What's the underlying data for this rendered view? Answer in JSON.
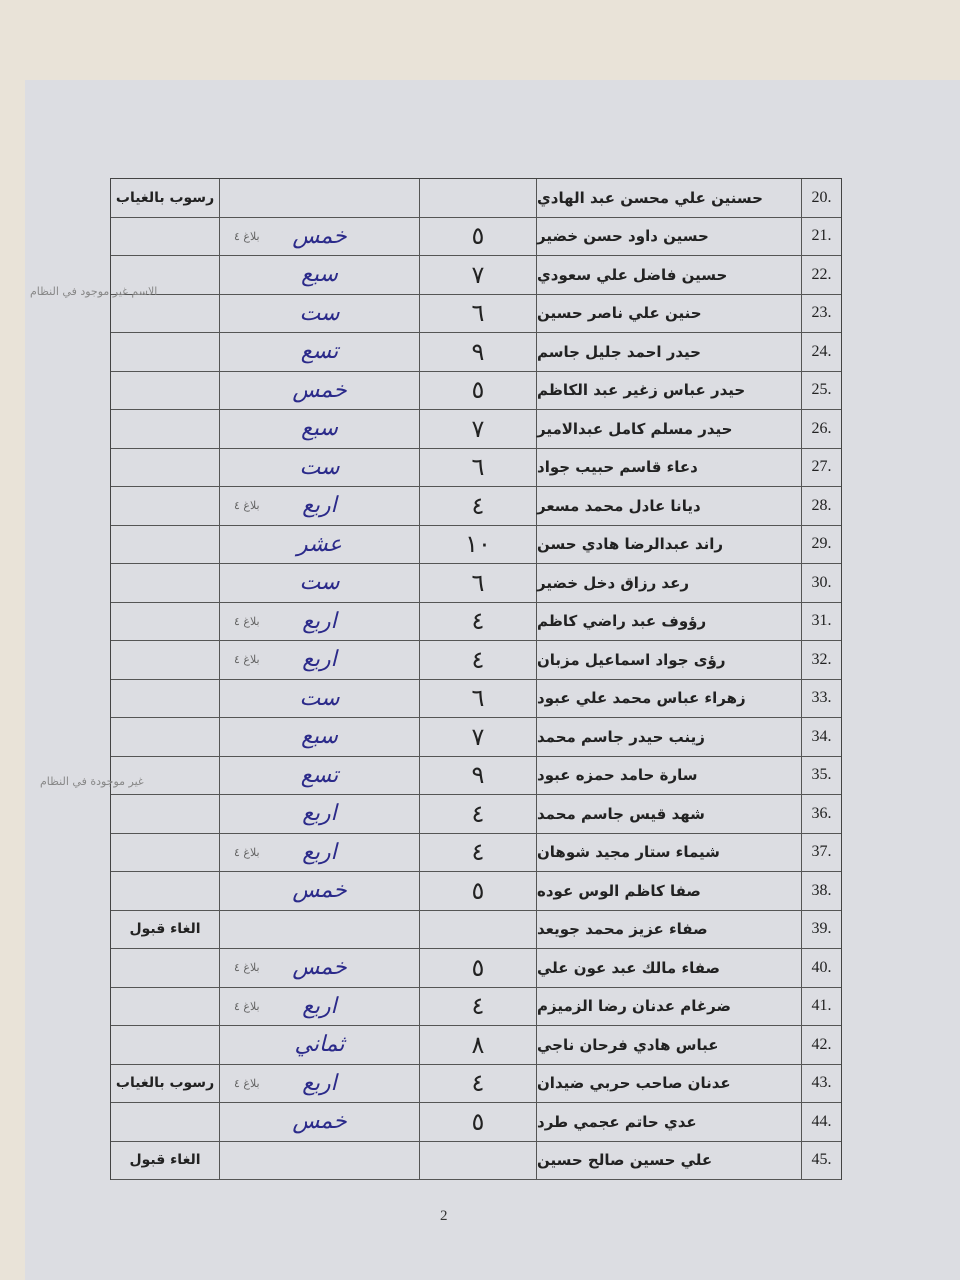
{
  "rows": [
    {
      "num": "20.",
      "name": "حسنين علي محسن عبد الهادي",
      "digit": "",
      "word": "",
      "tag": "",
      "note": "رسوب بالغياب"
    },
    {
      "num": "21.",
      "name": "حسين داود حسن خضير",
      "digit": "٥",
      "word": "خمس",
      "tag": "بلاغ ٤",
      "note": ""
    },
    {
      "num": "22.",
      "name": "حسين فاضل علي سعودي",
      "digit": "٧",
      "word": "سبع",
      "tag": "",
      "note": ""
    },
    {
      "num": "23.",
      "name": "حنين علي ناصر حسين",
      "digit": "٦",
      "word": "ست",
      "tag": "",
      "note": ""
    },
    {
      "num": "24.",
      "name": "حيدر احمد جليل جاسم",
      "digit": "٩",
      "word": "تسع",
      "tag": "",
      "note": ""
    },
    {
      "num": "25.",
      "name": "حيدر عباس زغير عبد الكاظم",
      "digit": "٥",
      "word": "خمس",
      "tag": "",
      "note": ""
    },
    {
      "num": "26.",
      "name": "حيدر مسلم كامل عبدالامير",
      "digit": "٧",
      "word": "سبع",
      "tag": "",
      "note": ""
    },
    {
      "num": "27.",
      "name": "دعاء قاسم حبيب جواد",
      "digit": "٦",
      "word": "ست",
      "tag": "",
      "note": ""
    },
    {
      "num": "28.",
      "name": "ديانا عادل محمد مسعر",
      "digit": "٤",
      "word": "اربع",
      "tag": "بلاغ ٤",
      "note": ""
    },
    {
      "num": "29.",
      "name": "راند عبدالرضا هادي حسن",
      "digit": "١٠",
      "word": "عشر",
      "tag": "",
      "note": ""
    },
    {
      "num": "30.",
      "name": "رعد رزاق دخل خضير",
      "digit": "٦",
      "word": "ست",
      "tag": "",
      "note": ""
    },
    {
      "num": "31.",
      "name": "رؤوف عبد راضي كاظم",
      "digit": "٤",
      "word": "اربع",
      "tag": "بلاغ ٤",
      "note": ""
    },
    {
      "num": "32.",
      "name": "رؤى جواد اسماعيل مزبان",
      "digit": "٤",
      "word": "اربع",
      "tag": "بلاغ ٤",
      "note": ""
    },
    {
      "num": "33.",
      "name": "زهراء عباس محمد علي عبود",
      "digit": "٦",
      "word": "ست",
      "tag": "",
      "note": ""
    },
    {
      "num": "34.",
      "name": "زينب حيدر جاسم محمد",
      "digit": "٧",
      "word": "سبع",
      "tag": "",
      "note": ""
    },
    {
      "num": "35.",
      "name": "سارة حامد حمزه عبود",
      "digit": "٩",
      "word": "تسع",
      "tag": "",
      "note": ""
    },
    {
      "num": "36.",
      "name": "شهد قيس جاسم محمد",
      "digit": "٤",
      "word": "اربع",
      "tag": "",
      "note": ""
    },
    {
      "num": "37.",
      "name": "شيماء ستار مجيد شوهان",
      "digit": "٤",
      "word": "اربع",
      "tag": "بلاغ ٤",
      "note": ""
    },
    {
      "num": "38.",
      "name": "صفا كاظم الوس عوده",
      "digit": "٥",
      "word": "خمس",
      "tag": "",
      "note": ""
    },
    {
      "num": "39.",
      "name": "صفاء عزيز محمد جويعد",
      "digit": "",
      "word": "",
      "tag": "",
      "note": "الغاء قبول"
    },
    {
      "num": "40.",
      "name": "صفاء مالك عبد عون علي",
      "digit": "٥",
      "word": "خمس",
      "tag": "بلاغ ٤",
      "note": ""
    },
    {
      "num": "41.",
      "name": "ضرغام عدنان رضا الزميزم",
      "digit": "٤",
      "word": "اربع",
      "tag": "بلاغ ٤",
      "note": ""
    },
    {
      "num": "42.",
      "name": "عباس هادي فرحان ناجي",
      "digit": "٨",
      "word": "ثماني",
      "tag": "",
      "note": ""
    },
    {
      "num": "43.",
      "name": "عدنان صاحب حربي ضيدان",
      "digit": "٤",
      "word": "اربع",
      "tag": "بلاغ ٤",
      "note": "رسوب بالغياب"
    },
    {
      "num": "44.",
      "name": "عدي حاتم عجمي طرد",
      "digit": "٥",
      "word": "خمس",
      "tag": "",
      "note": ""
    },
    {
      "num": "45.",
      "name": "علي حسين صالح حسين",
      "digit": "",
      "word": "",
      "tag": "",
      "note": "الغاء قبول"
    }
  ],
  "margin_notes": [
    "الاسم غير موجود في النظام",
    "غير موجودة في النظام"
  ],
  "page_number": "2"
}
